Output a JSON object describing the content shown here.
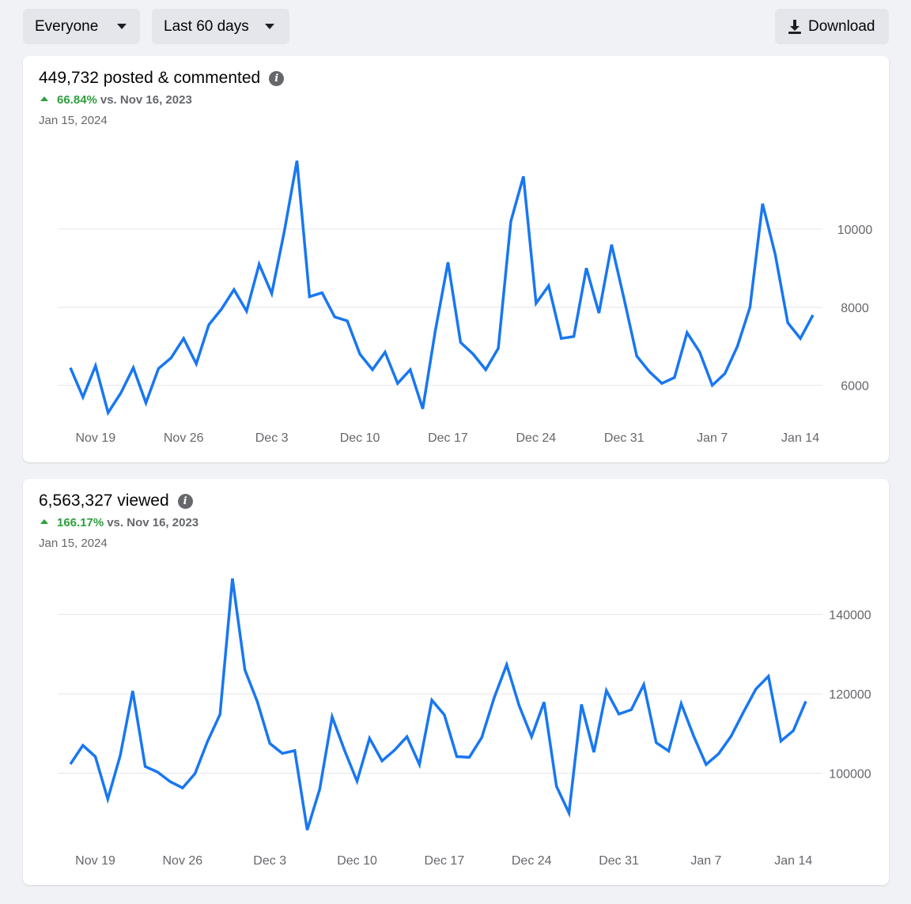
{
  "toolbar": {
    "audience": "Everyone",
    "range": "Last 60 days",
    "download": "Download"
  },
  "cards": [
    {
      "title": "449,732 posted & commented",
      "change": "66.84%",
      "compare": "vs. Nov 16, 2023",
      "date": "Jan 15, 2024"
    },
    {
      "title": "6,563,327 viewed",
      "change": "166.17%",
      "compare": "vs. Nov 16, 2023",
      "date": "Jan 15, 2024"
    }
  ],
  "colors": {
    "line": "#1877f2",
    "grid": "#e4e6eb",
    "positive": "#2e9e3d"
  },
  "icons": {
    "info": "info-icon",
    "download": "download-icon",
    "dropdown": "caret-down-icon"
  },
  "chart_data": [
    {
      "type": "line",
      "x_tick_labels": [
        "Nov 19",
        "Nov 26",
        "Dec 3",
        "Dec 10",
        "Dec 17",
        "Dec 24",
        "Dec 31",
        "Jan 7",
        "Jan 14"
      ],
      "y_tick_labels": [
        "6000",
        "8000",
        "10000"
      ],
      "y_ticks": [
        6000,
        8000,
        10000
      ],
      "ylim": [
        4900,
        11900
      ],
      "grid": true,
      "x_start": "2023-11-17",
      "values": [
        6450,
        5700,
        6500,
        5300,
        5800,
        6450,
        5550,
        6430,
        6700,
        7200,
        6550,
        7550,
        7950,
        8450,
        7900,
        9100,
        8350,
        9950,
        11750,
        8270,
        8370,
        7750,
        7650,
        6800,
        6400,
        6850,
        6050,
        6400,
        5400,
        7400,
        9150,
        7100,
        6800,
        6400,
        6950,
        10200,
        11350,
        8100,
        8550,
        7200,
        7250,
        9000,
        7850,
        9600,
        8200,
        6750,
        6350,
        6050,
        6200,
        7350,
        6850,
        6000,
        6300,
        7000,
        8000,
        10650,
        9350,
        7600,
        7200,
        7800
      ]
    },
    {
      "type": "line",
      "x_tick_labels": [
        "Nov 19",
        "Nov 26",
        "Dec 3",
        "Dec 10",
        "Dec 17",
        "Dec 24",
        "Dec 31",
        "Jan 7",
        "Jan 14"
      ],
      "y_tick_labels": [
        "100000",
        "120000",
        "140000"
      ],
      "y_ticks": [
        100000,
        120000,
        140000
      ],
      "ylim": [
        84000,
        152000
      ],
      "grid": true,
      "x_start": "2023-11-17",
      "values": [
        102300,
        107000,
        104200,
        93500,
        104500,
        120700,
        101700,
        100300,
        97900,
        96300,
        99900,
        108000,
        114800,
        149000,
        126000,
        118000,
        107500,
        105000,
        105700,
        85700,
        96000,
        114200,
        105700,
        98000,
        108800,
        103100,
        105800,
        109200,
        102200,
        118400,
        114700,
        104200,
        104000,
        109000,
        119000,
        127300,
        117000,
        109200,
        117900,
        96700,
        90000,
        117300,
        105300,
        120800,
        114900,
        116000,
        122300,
        107700,
        105600,
        117500,
        109400,
        102200,
        104900,
        109300,
        115400,
        121200,
        124400,
        108100,
        110700,
        118100
      ]
    }
  ]
}
